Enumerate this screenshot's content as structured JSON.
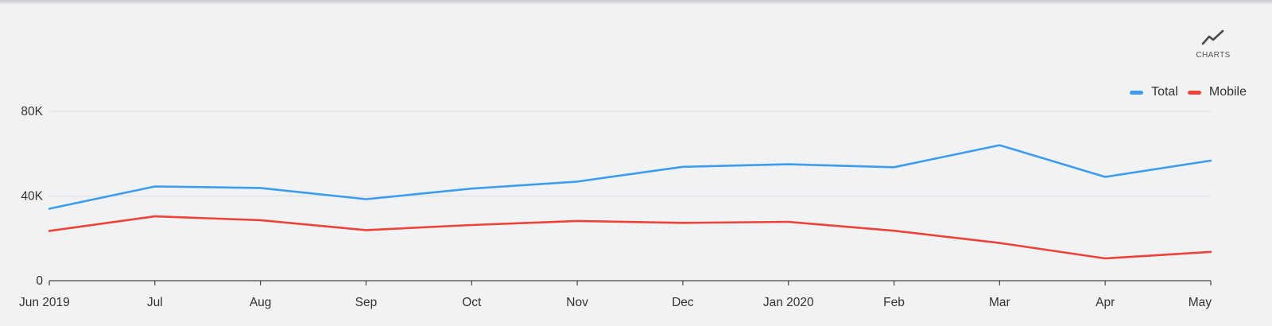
{
  "toolbar": {
    "charts_label": "CHARTS",
    "charts_icon": "line-chart-icon"
  },
  "chart_data": {
    "type": "line",
    "title": "",
    "xlabel": "",
    "ylabel": "",
    "categories": [
      "Jun 2019",
      "Jul",
      "Aug",
      "Sep",
      "Oct",
      "Nov",
      "Dec",
      "Jan 2020",
      "Feb",
      "Mar",
      "Apr",
      "May"
    ],
    "y_ticks": [
      {
        "value": 0,
        "label": "0"
      },
      {
        "value": 40000,
        "label": "40K"
      },
      {
        "value": 80000,
        "label": "80K"
      }
    ],
    "ylim": [
      0,
      80000
    ],
    "grid": true,
    "legend_position": "top-right",
    "series": [
      {
        "name": "Total",
        "color": "#3d9ced",
        "values": [
          34000,
          44500,
          43800,
          38500,
          43500,
          46800,
          53800,
          55000,
          53600,
          64000,
          49000,
          56700
        ]
      },
      {
        "name": "Mobile",
        "color": "#ef4339",
        "values": [
          23500,
          30400,
          28600,
          23900,
          26300,
          28200,
          27300,
          27800,
          23600,
          17800,
          10500,
          13600
        ]
      }
    ]
  }
}
